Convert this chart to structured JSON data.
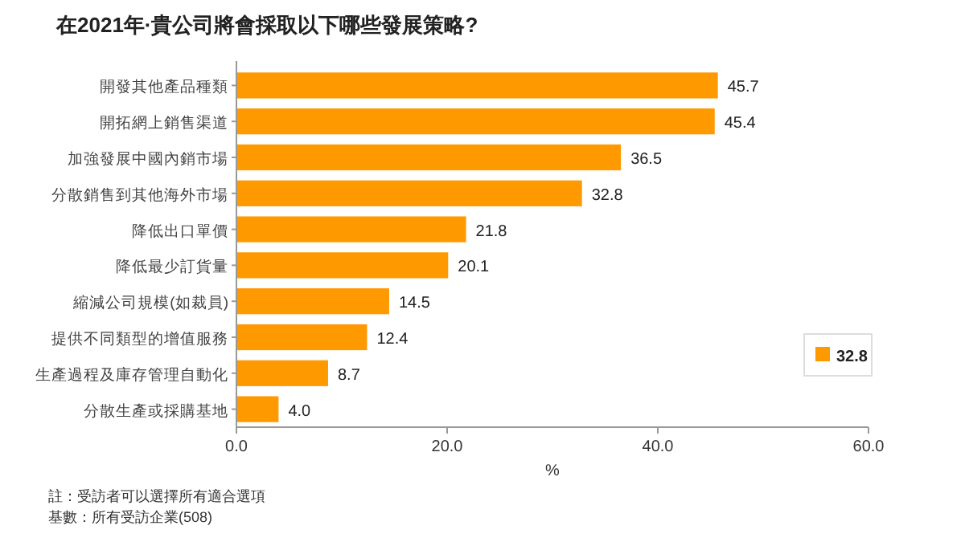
{
  "chart_data": {
    "type": "bar",
    "orientation": "horizontal",
    "title": "在2021年·貴公司將會採取以下哪些發展策略?",
    "xlabel": "%",
    "categories": [
      "開發其他產品種類",
      "開拓網上銷售渠道",
      "加強發展中國內銷市場",
      "分散銷售到其他海外市場",
      "降低出口單價",
      "降低最少訂貨量",
      "縮減公司規模(如裁員)",
      "提供不同類型的增值服務",
      "生產過程及庫存管理自動化",
      "分散生產或採購基地"
    ],
    "values": [
      45.7,
      45.4,
      36.5,
      32.8,
      21.8,
      20.1,
      14.5,
      12.4,
      8.7,
      4.0
    ],
    "value_labels": [
      "45.7",
      "45.4",
      "36.5",
      "32.8",
      "21.8",
      "20.1",
      "14.5",
      "12.4",
      "8.7",
      "4.0"
    ],
    "color": "#ff9900",
    "xlim": [
      0,
      60
    ],
    "xticks": [
      {
        "value": 0,
        "label": "0.0"
      },
      {
        "value": 20,
        "label": "20.0"
      },
      {
        "value": 40,
        "label": "40.0"
      },
      {
        "value": 60,
        "label": "60.0"
      }
    ],
    "grid": false,
    "annotations": [
      "32.8",
      "註：受訪者可以選擇所有適合選項",
      "基數：所有受訪企業(508)"
    ]
  }
}
